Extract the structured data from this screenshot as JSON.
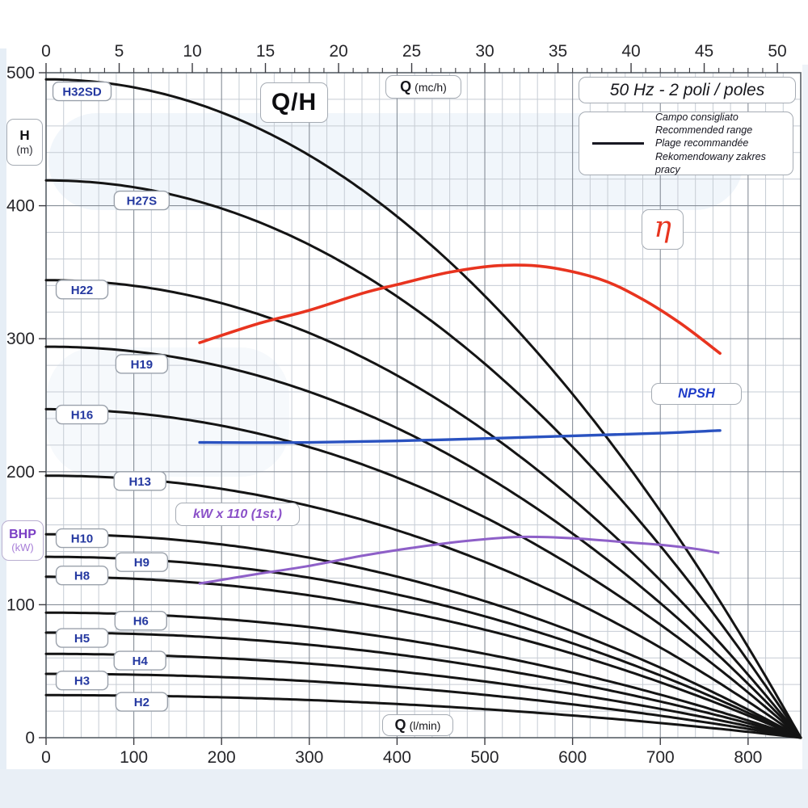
{
  "ui": {
    "title": "Q/H",
    "frequency": "50 Hz - 2 poli / poles",
    "legend_lines": [
      "Campo consigliato",
      "Recommended range",
      "Plage recommandée",
      "Rekomendowany zakres pracy"
    ],
    "eta_symbol": "η",
    "npsh_label": "NPSH",
    "power_label": "kW x 110 (1st.)",
    "top_axis_unit": {
      "bold": "Q",
      "rest": "(mc/h)"
    },
    "bottom_axis_unit": {
      "bold": "Q",
      "rest": "(l/min)"
    },
    "head_axis": {
      "bold": "H",
      "sub": "(m)"
    },
    "power_axis": {
      "bold": "BHP",
      "sub": "(kW)"
    }
  },
  "colors": {
    "curve_black": "#141414",
    "eta_red": "#e8341f",
    "npsh_blue": "#2a52c0",
    "power_purple": "#8e60c8",
    "curve_label_blue": "#2438a0",
    "grid_minor": "#c6ccd4",
    "grid_major": "#878e98",
    "plot_border": "#596068",
    "tick_text": "#26262a"
  },
  "chart_data": {
    "type": "line",
    "title": "Q/H",
    "x_axis_bottom": {
      "label": "Q (l/min)",
      "ticks": [
        0,
        100,
        200,
        300,
        400,
        500,
        600,
        700,
        800
      ],
      "range": [
        0,
        860
      ],
      "minor_step": 20
    },
    "x_axis_top": {
      "label": "Q (mc/h)",
      "ticks": [
        0,
        5,
        10,
        15,
        20,
        25,
        30,
        35,
        40,
        45,
        50
      ],
      "range": [
        0,
        51.6
      ],
      "minor_step": 1,
      "lmin_per_mch": 16.6667
    },
    "y_axis": {
      "label": "H (m)",
      "ticks": [
        0,
        100,
        200,
        300,
        400,
        500
      ],
      "range": [
        0,
        500
      ],
      "minor_step": 20
    },
    "grid": true,
    "legend_position": "top-right",
    "head_curves": {
      "model": "H(Q) = h0 * (1 - (Q/qmax)^exp)",
      "qmax_lmin": 860,
      "exp": 2.05,
      "series": [
        {
          "label": "H32SD",
          "h0_m": 495,
          "label_pos_q_h": [
            41,
            486
          ]
        },
        {
          "label": "H27S",
          "h0_m": 419,
          "label_pos_q_h": [
            109,
            404
          ]
        },
        {
          "label": "H22",
          "h0_m": 344,
          "label_pos_q_h": [
            41,
            337
          ]
        },
        {
          "label": "H19",
          "h0_m": 294,
          "label_pos_q_h": [
            109,
            281
          ]
        },
        {
          "label": "H16",
          "h0_m": 247,
          "label_pos_q_h": [
            41,
            243
          ]
        },
        {
          "label": "H13",
          "h0_m": 197,
          "label_pos_q_h": [
            107,
            193
          ]
        },
        {
          "label": "H10",
          "h0_m": 153,
          "label_pos_q_h": [
            41,
            150
          ]
        },
        {
          "label": "H9",
          "h0_m": 136,
          "label_pos_q_h": [
            109,
            132
          ]
        },
        {
          "label": "H8",
          "h0_m": 121,
          "label_pos_q_h": [
            41,
            122
          ]
        },
        {
          "label": "H6",
          "h0_m": 94,
          "label_pos_q_h": [
            108,
            88
          ]
        },
        {
          "label": "H5",
          "h0_m": 79,
          "label_pos_q_h": [
            41,
            75
          ]
        },
        {
          "label": "H4",
          "h0_m": 63,
          "label_pos_q_h": [
            107,
            58
          ]
        },
        {
          "label": "H3",
          "h0_m": 48,
          "label_pos_q_h": [
            41,
            43
          ]
        },
        {
          "label": "H2",
          "h0_m": 32,
          "label_pos_q_h": [
            109,
            27
          ]
        }
      ]
    },
    "efficiency_curve": {
      "label": "η",
      "points_q_h": [
        [
          175,
          297
        ],
        [
          240,
          311
        ],
        [
          298,
          321
        ],
        [
          360,
          334
        ],
        [
          402,
          341
        ],
        [
          460,
          350
        ],
        [
          516,
          355
        ],
        [
          570,
          354
        ],
        [
          630,
          345
        ],
        [
          676,
          331
        ],
        [
          722,
          312
        ],
        [
          768,
          289
        ]
      ]
    },
    "npsh_curve": {
      "label": "NPSH",
      "points_q_h": [
        [
          175,
          222
        ],
        [
          300,
          222
        ],
        [
          450,
          224
        ],
        [
          600,
          227
        ],
        [
          700,
          229
        ],
        [
          768,
          231
        ]
      ]
    },
    "power_curve": {
      "label": "kW x 110 (1st.)",
      "points_q_h": [
        [
          175,
          116
        ],
        [
          240,
          123
        ],
        [
          298,
          129
        ],
        [
          362,
          137
        ],
        [
          420,
          143
        ],
        [
          480,
          148
        ],
        [
          540,
          151
        ],
        [
          600,
          150
        ],
        [
          660,
          147
        ],
        [
          700,
          145
        ],
        [
          740,
          142
        ],
        [
          766,
          139
        ]
      ]
    }
  }
}
